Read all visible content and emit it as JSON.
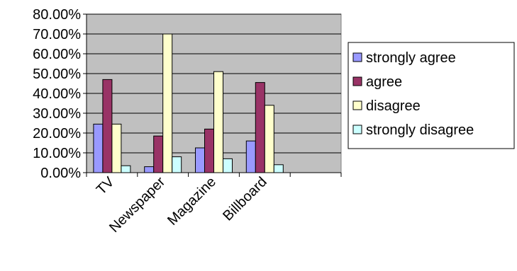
{
  "chart_data": {
    "type": "bar",
    "categories": [
      "TV",
      "Newspaper",
      "Magazine",
      "Billboard",
      ""
    ],
    "series": [
      {
        "name": "strongly agree",
        "color": "#9999ff",
        "values": [
          24.5,
          3.0,
          12.5,
          16.0,
          null
        ]
      },
      {
        "name": "agree",
        "color": "#993366",
        "values": [
          47.0,
          18.5,
          22.0,
          45.5,
          null
        ]
      },
      {
        "name": "disagree",
        "color": "#ffffcc",
        "values": [
          24.5,
          70.0,
          51.0,
          34.0,
          null
        ]
      },
      {
        "name": "strongly disagree",
        "color": "#ccffff",
        "values": [
          3.5,
          8.0,
          7.0,
          4.0,
          null
        ]
      }
    ],
    "ylim": [
      0,
      80
    ],
    "yticks": [
      "0.00%",
      "10.00%",
      "20.00%",
      "30.00%",
      "40.00%",
      "50.00%",
      "60.00%",
      "70.00%",
      "80.00%"
    ],
    "plot_background": "#c0c0c0",
    "grid": true,
    "legend_position": "right"
  }
}
